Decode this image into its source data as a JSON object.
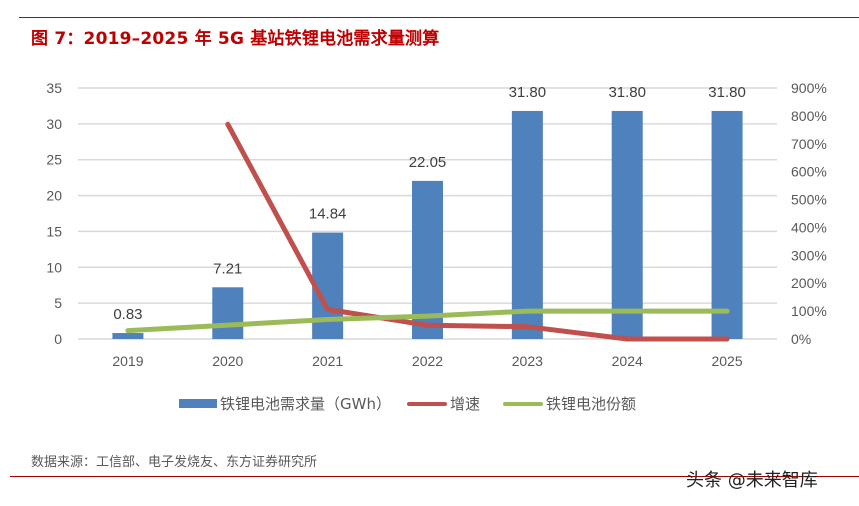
{
  "header": {
    "title": "图 7：2019–2025 年 5G 基站铁锂电池需求量测算"
  },
  "chart_data": {
    "type": "bar+line",
    "title": "2019–2025 年 5G 基站铁锂电池需求量测算",
    "categories": [
      "2019",
      "2020",
      "2021",
      "2022",
      "2023",
      "2024",
      "2025"
    ],
    "series": [
      {
        "name": "铁锂电池需求量（GWh）",
        "type": "bar",
        "axis": "left",
        "color": "#4f81bd",
        "values": [
          0.83,
          7.21,
          14.84,
          22.05,
          31.8,
          31.8,
          31.8
        ],
        "labels": [
          "0.83",
          "7.21",
          "14.84",
          "22.05",
          "31.80",
          "31.80",
          "31.80"
        ]
      },
      {
        "name": "增速",
        "type": "line",
        "axis": "right",
        "color": "#c0504d",
        "values": [
          null,
          770,
          106,
          49,
          44,
          0,
          0
        ]
      },
      {
        "name": "铁锂电池份额",
        "type": "line",
        "axis": "right",
        "color": "#9bbb59",
        "values": [
          30,
          50,
          70,
          82,
          100,
          100,
          100
        ]
      }
    ],
    "left_axis": {
      "ylim": [
        0,
        35
      ],
      "ticks": [
        "0",
        "5",
        "10",
        "15",
        "20",
        "25",
        "30",
        "35"
      ]
    },
    "right_axis": {
      "ylim": [
        0,
        900
      ],
      "unit": "%",
      "ticks": [
        "0%",
        "100%",
        "200%",
        "300%",
        "400%",
        "500%",
        "600%",
        "700%",
        "800%",
        "900%"
      ]
    },
    "grid": true,
    "legend_position": "bottom"
  },
  "legend": {
    "items": [
      {
        "label": "铁锂电池需求量（GWh）",
        "color": "#4f81bd"
      },
      {
        "label": "增速",
        "color": "#c0504d"
      },
      {
        "label": "铁锂电池份额",
        "color": "#9bbb59"
      }
    ]
  },
  "footer": {
    "source": "数据来源：工信部、电子发烧友、东方证券研究所",
    "watermark": "头条 @未来智库"
  }
}
